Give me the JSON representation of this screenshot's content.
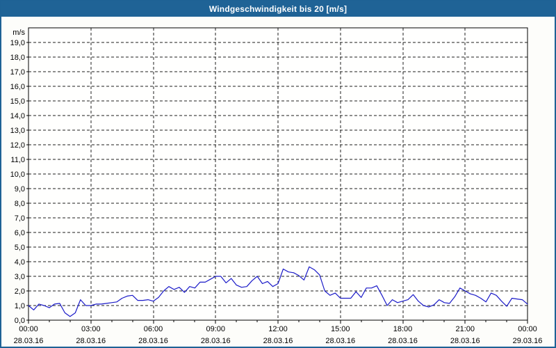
{
  "window": {
    "title": "Windgeschwindigkeit bis 20 [m/s]"
  },
  "colors": {
    "frame_border": "#1e6295",
    "titlebar_bg": "#1f6396",
    "titlebar_text": "#ffffff",
    "page_bg": "#fdfdfa",
    "plot_bg": "#fffffe",
    "axis": "#000000",
    "grid": "#1c1c1c",
    "line": "#1a1ac8",
    "label_text": "#000000"
  },
  "chart_data": {
    "type": "line",
    "title": "Windgeschwindigkeit bis 20 [m/s]",
    "ylabel": "m/s",
    "y_unit_label": "m/s",
    "ylim": [
      0,
      20
    ],
    "y_tick_step": 1.0,
    "y_tick_labels": [
      "0,0",
      "1,0",
      "2,0",
      "3,0",
      "4,0",
      "5,0",
      "6,0",
      "7,0",
      "8,0",
      "9,0",
      "10,0",
      "11,0",
      "12,0",
      "13,0",
      "14,0",
      "15,0",
      "16,0",
      "17,0",
      "18,0",
      "19,0"
    ],
    "x_range_hours": [
      0,
      24
    ],
    "x_minor_tick_hours": 1,
    "x_major_tick_hours": 3,
    "x_major_ticks": [
      {
        "time": "00:00",
        "date": "28.03.16"
      },
      {
        "time": "03:00",
        "date": "28.03.16"
      },
      {
        "time": "06:00",
        "date": "28.03.16"
      },
      {
        "time": "09:00",
        "date": "28.03.16"
      },
      {
        "time": "12:00",
        "date": "28.03.16"
      },
      {
        "time": "15:00",
        "date": "28.03.16"
      },
      {
        "time": "18:00",
        "date": "28.03.16"
      },
      {
        "time": "21:00",
        "date": "28.03.16"
      },
      {
        "time": "00:00",
        "date": "29.03.16"
      }
    ],
    "grid": "dashed",
    "legend": "none",
    "series": [
      {
        "name": "Windgeschwindigkeit",
        "unit": "m/s",
        "start_hour": 0,
        "sample_interval_hours": 0.25,
        "values": [
          1.0,
          0.7,
          1.1,
          1.0,
          0.85,
          1.1,
          1.15,
          0.5,
          0.25,
          0.5,
          1.4,
          1.0,
          1.0,
          1.1,
          1.1,
          1.15,
          1.2,
          1.25,
          1.5,
          1.65,
          1.7,
          1.35,
          1.35,
          1.4,
          1.3,
          1.55,
          2.0,
          2.3,
          2.1,
          2.25,
          1.9,
          2.3,
          2.2,
          2.6,
          2.6,
          2.8,
          3.0,
          3.0,
          2.55,
          2.85,
          2.4,
          2.25,
          2.3,
          2.7,
          3.0,
          2.5,
          2.65,
          2.3,
          2.5,
          3.5,
          3.3,
          3.25,
          3.05,
          2.75,
          3.65,
          3.45,
          3.1,
          2.0,
          1.7,
          1.85,
          1.5,
          1.5,
          1.5,
          1.95,
          1.55,
          2.2,
          2.2,
          2.35,
          1.7,
          1.0,
          1.4,
          1.2,
          1.3,
          1.4,
          1.75,
          1.3,
          1.0,
          0.9,
          1.05,
          1.4,
          1.2,
          1.15,
          1.6,
          2.2,
          2.0,
          1.8,
          1.7,
          1.5,
          1.25,
          1.85,
          1.7,
          1.3,
          0.95,
          1.5,
          1.45,
          1.4,
          1.1
        ]
      }
    ]
  }
}
